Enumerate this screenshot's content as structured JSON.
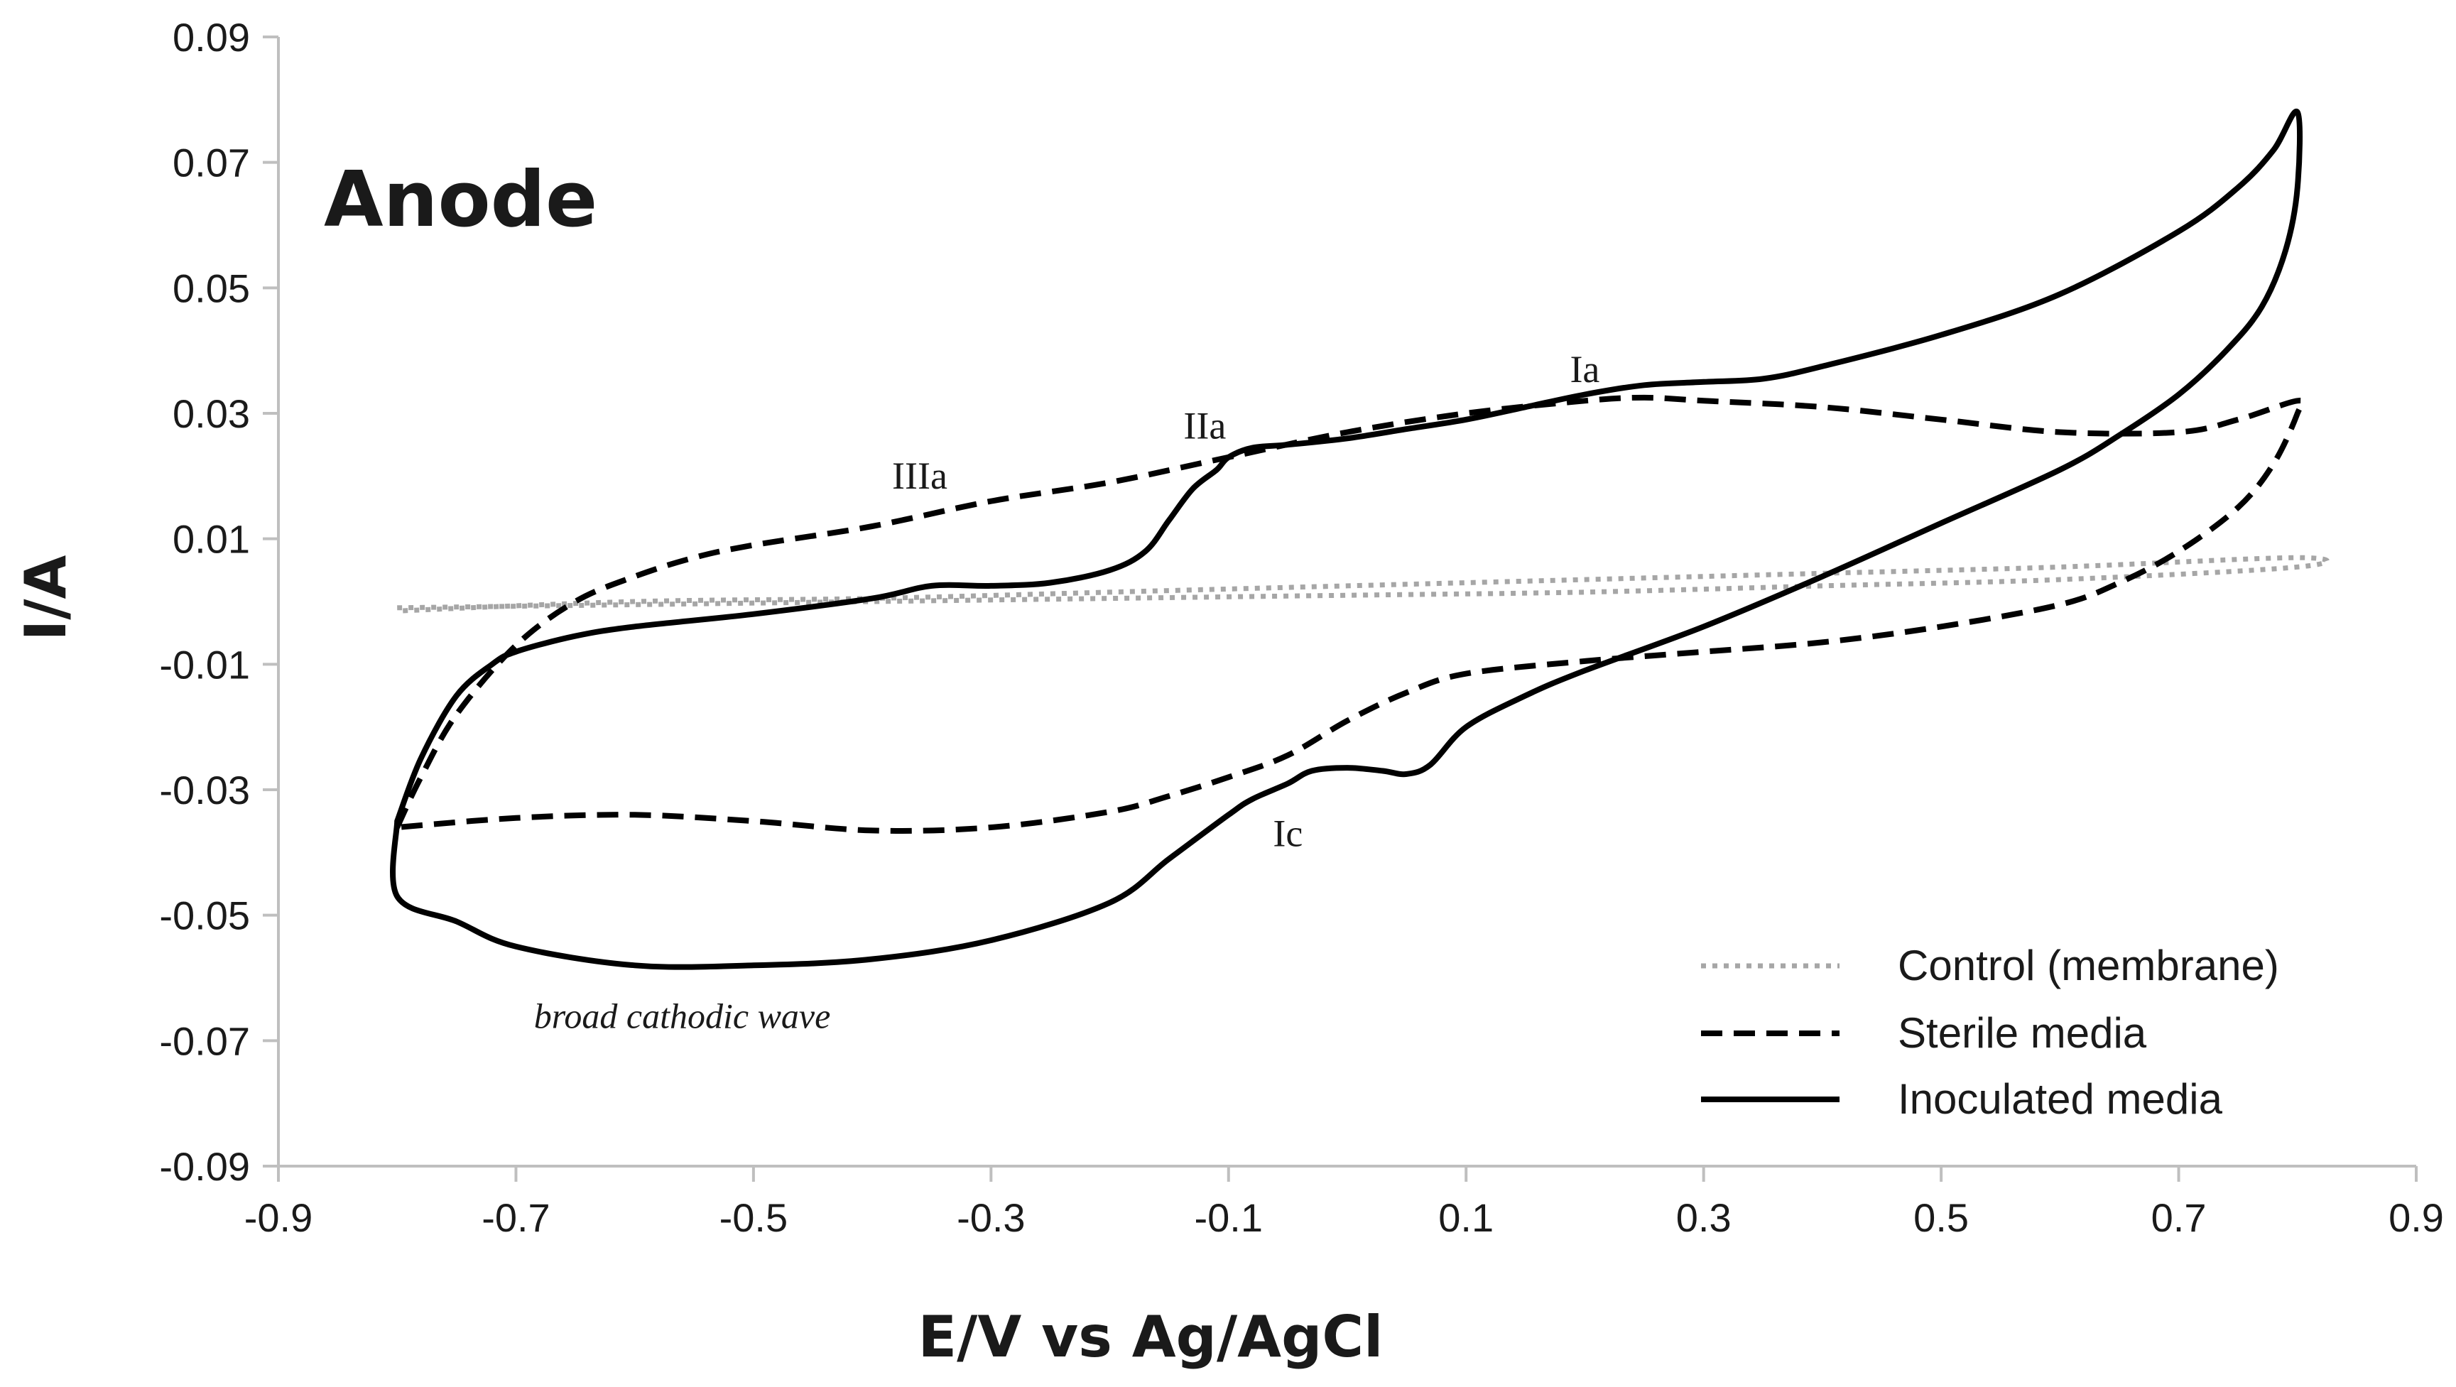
{
  "chart_data": {
    "type": "line",
    "title": "Anode",
    "xlabel": "E/V vs Ag/AgCl",
    "ylabel": "I/A",
    "xlim": [
      -0.9,
      0.9
    ],
    "ylim": [
      -0.09,
      0.09
    ],
    "x_ticks": [
      -0.9,
      -0.7,
      -0.5,
      -0.3,
      -0.1,
      0.1,
      0.3,
      0.5,
      0.7,
      0.9
    ],
    "y_ticks": [
      0.09,
      0.07,
      0.05,
      0.03,
      0.01,
      -0.01,
      -0.03,
      -0.05,
      -0.07,
      -0.09
    ],
    "x_tick_labels": [
      "-0.9",
      "-0.7",
      "-0.5",
      "-0.3",
      "-0.1",
      "0.1",
      "0.3",
      "0.5",
      "0.7",
      "0.9"
    ],
    "y_tick_labels": [
      "0.09",
      "0.07",
      "0.05",
      "0.03",
      "0.01",
      "-0.01",
      "-0.03",
      "-0.05",
      "-0.07",
      "-0.09"
    ],
    "grid": false,
    "legend_position": "bottom-right",
    "series": [
      {
        "name": "Control (membrane)",
        "style": "dotted",
        "color": "#a6a6a6",
        "x": [
          -0.8,
          -0.6,
          -0.4,
          -0.2,
          0.0,
          0.2,
          0.4,
          0.6,
          0.8,
          0.8,
          0.6,
          0.4,
          0.2,
          0.0,
          -0.2,
          -0.4,
          -0.6,
          -0.8
        ],
        "y": [
          -0.001,
          -0.0005,
          0.0,
          0.0005,
          0.001,
          0.0015,
          0.0025,
          0.0035,
          0.0055,
          0.007,
          0.0055,
          0.0045,
          0.0035,
          0.0025,
          0.0015,
          0.0005,
          0.0,
          -0.0015
        ]
      },
      {
        "name": "Sterile media",
        "style": "dashed",
        "color": "#000000",
        "x": [
          -0.8,
          -0.78,
          -0.75,
          -0.7,
          -0.65,
          -0.6,
          -0.55,
          -0.5,
          -0.4,
          -0.3,
          -0.2,
          -0.1,
          0.0,
          0.1,
          0.2,
          0.25,
          0.3,
          0.4,
          0.5,
          0.6,
          0.7,
          0.75,
          0.8,
          0.8,
          0.78,
          0.75,
          0.7,
          0.65,
          0.6,
          0.5,
          0.4,
          0.3,
          0.2,
          0.1,
          0.05,
          0.0,
          -0.05,
          -0.1,
          -0.15,
          -0.2,
          -0.3,
          -0.4,
          -0.5,
          -0.6,
          -0.7,
          -0.8
        ],
        "y": [
          -0.036,
          -0.028,
          -0.018,
          -0.007,
          0.0,
          0.004,
          0.007,
          0.009,
          0.012,
          0.016,
          0.019,
          0.023,
          0.027,
          0.03,
          0.032,
          0.0325,
          0.032,
          0.031,
          0.029,
          0.027,
          0.027,
          0.029,
          0.032,
          0.03,
          0.022,
          0.015,
          0.008,
          0.003,
          -0.0005,
          -0.004,
          -0.0065,
          -0.008,
          -0.0095,
          -0.0115,
          -0.0145,
          -0.019,
          -0.0245,
          -0.028,
          -0.031,
          -0.0335,
          -0.036,
          -0.0365,
          -0.035,
          -0.034,
          -0.0345,
          -0.036
        ]
      },
      {
        "name": "Inoculated media",
        "style": "solid",
        "color": "#000000",
        "x": [
          -0.8,
          -0.78,
          -0.75,
          -0.72,
          -0.7,
          -0.65,
          -0.6,
          -0.5,
          -0.4,
          -0.35,
          -0.3,
          -0.25,
          -0.2,
          -0.17,
          -0.15,
          -0.13,
          -0.11,
          -0.1,
          -0.08,
          -0.05,
          0.0,
          0.05,
          0.1,
          0.15,
          0.2,
          0.25,
          0.3,
          0.35,
          0.4,
          0.5,
          0.6,
          0.7,
          0.75,
          0.78,
          0.8,
          0.8,
          0.79,
          0.77,
          0.74,
          0.7,
          0.65,
          0.6,
          0.5,
          0.4,
          0.3,
          0.2,
          0.15,
          0.1,
          0.07,
          0.05,
          0.03,
          0.0,
          -0.03,
          -0.05,
          -0.08,
          -0.1,
          -0.15,
          -0.2,
          -0.3,
          -0.4,
          -0.5,
          -0.6,
          -0.7,
          -0.75,
          -0.8,
          -0.8
        ],
        "y": [
          -0.035,
          -0.025,
          -0.015,
          -0.01,
          -0.008,
          -0.0055,
          -0.004,
          -0.002,
          0.0005,
          0.0025,
          0.0025,
          0.003,
          0.005,
          0.008,
          0.013,
          0.018,
          0.021,
          0.023,
          0.0245,
          0.025,
          0.026,
          0.0275,
          0.029,
          0.031,
          0.033,
          0.0345,
          0.035,
          0.0355,
          0.0375,
          0.0425,
          0.049,
          0.059,
          0.066,
          0.072,
          0.078,
          0.066,
          0.056,
          0.047,
          0.04,
          0.033,
          0.0265,
          0.021,
          0.0125,
          0.004,
          -0.004,
          -0.011,
          -0.015,
          -0.02,
          -0.026,
          -0.0275,
          -0.027,
          -0.0265,
          -0.027,
          -0.029,
          -0.0315,
          -0.034,
          -0.041,
          -0.048,
          -0.054,
          -0.057,
          -0.058,
          -0.058,
          -0.055,
          -0.051,
          -0.047,
          -0.035
        ]
      }
    ],
    "annotations": [
      {
        "text": "IIIa",
        "x": -0.36,
        "y": 0.018
      },
      {
        "text": "IIa",
        "x": -0.12,
        "y": 0.026
      },
      {
        "text": "Ia",
        "x": 0.2,
        "y": 0.035
      },
      {
        "text": "Ic",
        "x": -0.05,
        "y": -0.039
      },
      {
        "text": "broad cathodic wave",
        "x": -0.56,
        "y": -0.068,
        "italic": true
      }
    ]
  }
}
